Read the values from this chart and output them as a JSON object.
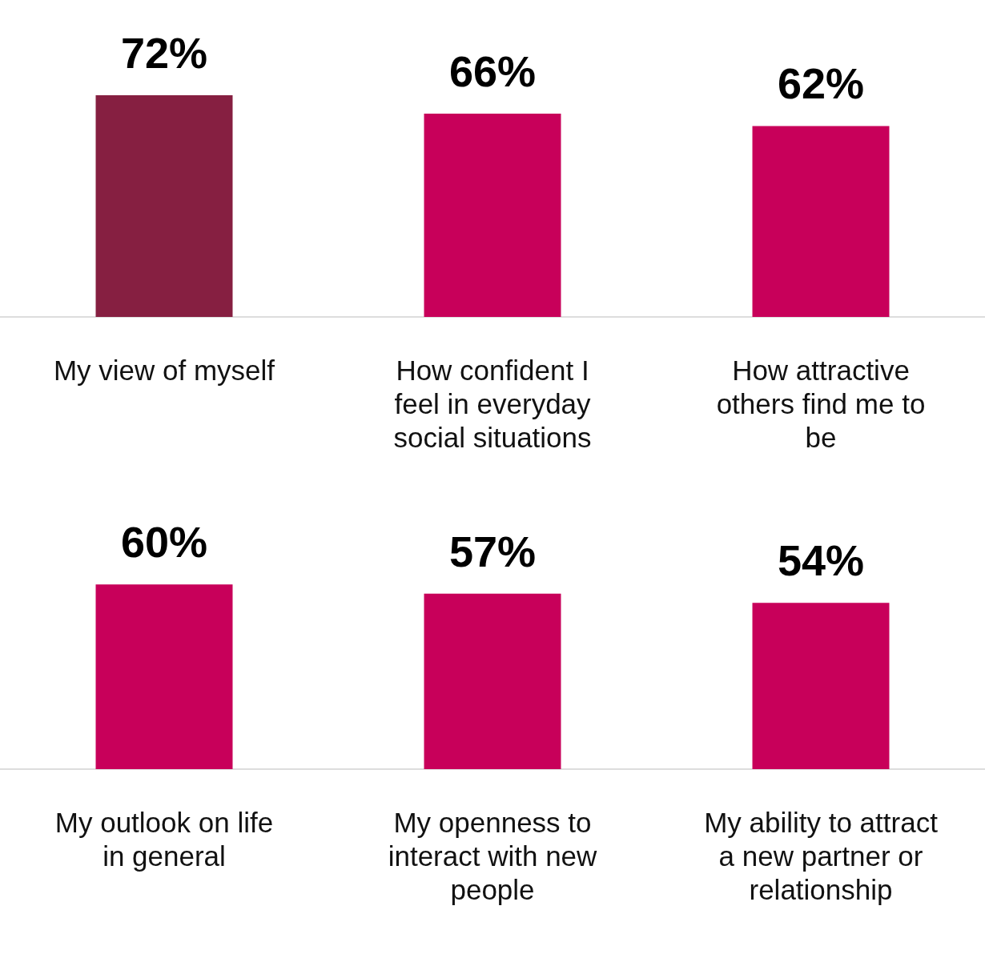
{
  "chart_data": [
    {
      "type": "bar",
      "categories": [
        "My view of myself",
        "How confident I feel in everyday social situations",
        "How attractive others find me to be"
      ],
      "values": [
        72,
        66,
        62
      ],
      "colors": [
        "#861f41",
        "#c8005a",
        "#c8005a"
      ],
      "value_labels": [
        "72%",
        "66%",
        "62%"
      ]
    },
    {
      "type": "bar",
      "categories": [
        "My outlook on life in general",
        "My openness to interact with new people",
        "My ability to attract a new partner or relationship"
      ],
      "values": [
        60,
        57,
        54
      ],
      "colors": [
        "#c8005a",
        "#c8005a",
        "#c8005a"
      ],
      "value_labels": [
        "60%",
        "57%",
        "54%"
      ]
    }
  ]
}
